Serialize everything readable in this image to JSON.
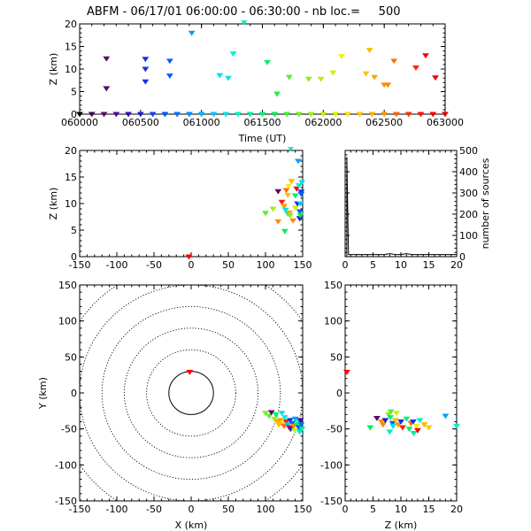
{
  "title": "ABFM - 06/17/01 06:00:00 - 06:30:00 - nb loc.=     500",
  "chart_data": [
    {
      "id": "time_height",
      "type": "scatter",
      "xlabel": "Time (UT)",
      "ylabel": "Z (km)",
      "xlim": [
        60000,
        63000
      ],
      "ylim": [
        0,
        20
      ],
      "xticks": [
        "060000",
        "060500",
        "061000",
        "061500",
        "062000",
        "062500",
        "063000"
      ],
      "yticks": [
        "0",
        "5",
        "10",
        "15",
        "20"
      ],
      "points": [
        {
          "x": 60000,
          "y": 0,
          "c": "#000000"
        },
        {
          "x": 60100,
          "y": 0,
          "c": "#3a0a4a"
        },
        {
          "x": 60200,
          "y": 0,
          "c": "#5a0a6a"
        },
        {
          "x": 60220,
          "y": 12.3,
          "c": "#5a0a6a"
        },
        {
          "x": 60220,
          "y": 5.7,
          "c": "#5a0a6a"
        },
        {
          "x": 60300,
          "y": 0,
          "c": "#4a0a90"
        },
        {
          "x": 60400,
          "y": 0,
          "c": "#3010b0"
        },
        {
          "x": 60500,
          "y": 0,
          "c": "#2020d0"
        },
        {
          "x": 60540,
          "y": 12.2,
          "c": "#1f2fe0"
        },
        {
          "x": 60540,
          "y": 10.0,
          "c": "#1f2fe0"
        },
        {
          "x": 60540,
          "y": 7.2,
          "c": "#1f2fe0"
        },
        {
          "x": 60600,
          "y": 0,
          "c": "#1040ff"
        },
        {
          "x": 60700,
          "y": 0,
          "c": "#0050ff"
        },
        {
          "x": 60740,
          "y": 11.8,
          "c": "#0060ff"
        },
        {
          "x": 60740,
          "y": 8.5,
          "c": "#0060ff"
        },
        {
          "x": 60800,
          "y": 0,
          "c": "#0070ff"
        },
        {
          "x": 60900,
          "y": 0,
          "c": "#0090ff"
        },
        {
          "x": 60920,
          "y": 18.0,
          "c": "#00a0ff"
        },
        {
          "x": 61000,
          "y": 0,
          "c": "#00b0ff"
        },
        {
          "x": 61100,
          "y": 0,
          "c": "#00c8ff"
        },
        {
          "x": 61150,
          "y": 8.6,
          "c": "#00e0f0"
        },
        {
          "x": 61200,
          "y": 0,
          "c": "#00e0e8"
        },
        {
          "x": 61220,
          "y": 8.0,
          "c": "#00e8e0"
        },
        {
          "x": 61260,
          "y": 13.4,
          "c": "#00f0d0"
        },
        {
          "x": 61300,
          "y": 0,
          "c": "#00f0c8"
        },
        {
          "x": 61350,
          "y": 20.4,
          "c": "#00f0c0"
        },
        {
          "x": 61400,
          "y": 0,
          "c": "#00f0a0"
        },
        {
          "x": 61500,
          "y": 0,
          "c": "#00f080"
        },
        {
          "x": 61540,
          "y": 11.5,
          "c": "#00f070"
        },
        {
          "x": 61600,
          "y": 0,
          "c": "#00f050"
        },
        {
          "x": 61620,
          "y": 4.5,
          "c": "#20f040"
        },
        {
          "x": 61700,
          "y": 0,
          "c": "#40f030"
        },
        {
          "x": 61720,
          "y": 8.2,
          "c": "#50f030"
        },
        {
          "x": 61800,
          "y": 0,
          "c": "#70f020"
        },
        {
          "x": 61880,
          "y": 7.8,
          "c": "#80f020"
        },
        {
          "x": 61900,
          "y": 0,
          "c": "#a0f010"
        },
        {
          "x": 61980,
          "y": 7.8,
          "c": "#b0f010"
        },
        {
          "x": 62000,
          "y": 0,
          "c": "#c8f000"
        },
        {
          "x": 62080,
          "y": 9.2,
          "c": "#d0f000"
        },
        {
          "x": 62100,
          "y": 0,
          "c": "#e0f000"
        },
        {
          "x": 62150,
          "y": 12.8,
          "c": "#f0f000"
        },
        {
          "x": 62200,
          "y": 0,
          "c": "#ffe000"
        },
        {
          "x": 62300,
          "y": 0,
          "c": "#ffc800"
        },
        {
          "x": 62350,
          "y": 9.0,
          "c": "#ffc000"
        },
        {
          "x": 62380,
          "y": 14.2,
          "c": "#ffb800"
        },
        {
          "x": 62400,
          "y": 0,
          "c": "#ffb000"
        },
        {
          "x": 62420,
          "y": 8.2,
          "c": "#ffa800"
        },
        {
          "x": 62500,
          "y": 0,
          "c": "#ff9800"
        },
        {
          "x": 62500,
          "y": 6.5,
          "c": "#ff9000"
        },
        {
          "x": 62530,
          "y": 6.5,
          "c": "#ff8800"
        },
        {
          "x": 62580,
          "y": 11.8,
          "c": "#ff7000"
        },
        {
          "x": 62600,
          "y": 0,
          "c": "#ff6000"
        },
        {
          "x": 62700,
          "y": 0,
          "c": "#ff3000"
        },
        {
          "x": 62760,
          "y": 10.3,
          "c": "#ff2000"
        },
        {
          "x": 62800,
          "y": 0,
          "c": "#ff1000"
        },
        {
          "x": 62840,
          "y": 13.0,
          "c": "#ff0000"
        },
        {
          "x": 62900,
          "y": 0,
          "c": "#f00000"
        },
        {
          "x": 62920,
          "y": 8.1,
          "c": "#ee0000"
        },
        {
          "x": 63000,
          "y": 0,
          "c": "#e00000"
        }
      ]
    },
    {
      "id": "x_height",
      "type": "scatter",
      "ylabel": "Z (km)",
      "xlim": [
        -150,
        150
      ],
      "ylim": [
        0,
        20
      ],
      "xticks": [
        "-150",
        "-100",
        "-50",
        "0",
        "50",
        "100",
        "150"
      ],
      "yticks": [
        "0",
        "5",
        "10",
        "15",
        "20"
      ],
      "points": [
        {
          "x": -3,
          "y": 0,
          "c": "#ff0000"
        },
        {
          "x": 100,
          "y": 8.2,
          "c": "#50f030"
        },
        {
          "x": 110,
          "y": 9.0,
          "c": "#a0f010"
        },
        {
          "x": 117,
          "y": 12.3,
          "c": "#5a0a6a"
        },
        {
          "x": 117,
          "y": 6.6,
          "c": "#ff9000"
        },
        {
          "x": 122,
          "y": 10.3,
          "c": "#ff2000"
        },
        {
          "x": 125,
          "y": 9.5,
          "c": "#ff9800"
        },
        {
          "x": 126,
          "y": 4.8,
          "c": "#00f050"
        },
        {
          "x": 127,
          "y": 8.8,
          "c": "#00e0f0"
        },
        {
          "x": 128,
          "y": 12.5,
          "c": "#ff7000"
        },
        {
          "x": 130,
          "y": 8.1,
          "c": "#00f070"
        },
        {
          "x": 130,
          "y": 11.6,
          "c": "#ffc000"
        },
        {
          "x": 131,
          "y": 13.3,
          "c": "#f0f000"
        },
        {
          "x": 132,
          "y": 8.3,
          "c": "#ffa800"
        },
        {
          "x": 133,
          "y": 7.8,
          "c": "#80f020"
        },
        {
          "x": 134,
          "y": 20.4,
          "c": "#00f0c0"
        },
        {
          "x": 135,
          "y": 14.2,
          "c": "#ffb800"
        },
        {
          "x": 137,
          "y": 6.8,
          "c": "#ff8800"
        },
        {
          "x": 140,
          "y": 9.2,
          "c": "#d0f000"
        },
        {
          "x": 140,
          "y": 11.5,
          "c": "#00f070"
        },
        {
          "x": 142,
          "y": 12.8,
          "c": "#ff0000"
        },
        {
          "x": 143,
          "y": 10.0,
          "c": "#1f2fe0"
        },
        {
          "x": 144,
          "y": 18.0,
          "c": "#00a0ff"
        },
        {
          "x": 145,
          "y": 13.4,
          "c": "#00f0d0"
        },
        {
          "x": 146,
          "y": 7.2,
          "c": "#2020d0"
        },
        {
          "x": 146,
          "y": 8.5,
          "c": "#0060ff"
        },
        {
          "x": 147,
          "y": 10.0,
          "c": "#00c8ff"
        },
        {
          "x": 147,
          "y": 7.8,
          "c": "#00f050"
        },
        {
          "x": 148,
          "y": 12.2,
          "c": "#1f2fe0"
        },
        {
          "x": 148,
          "y": 11.8,
          "c": "#0060ff"
        },
        {
          "x": 149,
          "y": 14.0,
          "c": "#00e0e8"
        }
      ]
    },
    {
      "id": "height_histogram",
      "type": "line",
      "ylabel": "number of sources",
      "xlim": [
        0,
        20
      ],
      "ylim": [
        0,
        500
      ],
      "xticks": [
        "0",
        "5",
        "10",
        "15",
        "20"
      ],
      "yticks": [
        "0",
        "100",
        "200",
        "300",
        "400",
        "500"
      ],
      "x": [
        0,
        0.3,
        0.3,
        0.6,
        1,
        2,
        3,
        4,
        5,
        6,
        7,
        7.5,
        8,
        8.5,
        9,
        9.5,
        10,
        10.5,
        11,
        11.5,
        12,
        12.5,
        13,
        14,
        15,
        16,
        17,
        18,
        19,
        20
      ],
      "values": [
        0,
        0,
        470,
        10,
        10,
        10,
        10,
        10,
        10,
        10,
        10,
        12,
        14,
        12,
        10,
        10,
        10,
        12,
        14,
        12,
        10,
        10,
        10,
        10,
        10,
        10,
        10,
        10,
        10,
        10
      ]
    },
    {
      "id": "plan_view",
      "type": "scatter",
      "xlabel": "X (km)",
      "ylabel": "Y (km)",
      "xlim": [
        -150,
        150
      ],
      "ylim": [
        -150,
        150
      ],
      "xticks": [
        "-150",
        "-100",
        "-50",
        "0",
        "50",
        "100",
        "150"
      ],
      "yticks": [
        "-150",
        "-100",
        "-50",
        "0",
        "50",
        "100",
        "150"
      ],
      "range_rings_km": [
        30,
        60,
        90,
        120,
        150,
        180,
        210
      ],
      "points": [
        {
          "x": -2,
          "y": 29,
          "c": "#ff0000"
        },
        {
          "x": 100,
          "y": -28,
          "c": "#80f020"
        },
        {
          "x": 105,
          "y": -32,
          "c": "#50f030"
        },
        {
          "x": 108,
          "y": -27,
          "c": "#5a0a6a"
        },
        {
          "x": 112,
          "y": -36,
          "c": "#a0f010"
        },
        {
          "x": 114,
          "y": -30,
          "c": "#00f070"
        },
        {
          "x": 116,
          "y": -40,
          "c": "#ffb000"
        },
        {
          "x": 118,
          "y": -44,
          "c": "#ffc000"
        },
        {
          "x": 120,
          "y": -38,
          "c": "#ff9800"
        },
        {
          "x": 122,
          "y": -28,
          "c": "#00e0f0"
        },
        {
          "x": 124,
          "y": -42,
          "c": "#f0f000"
        },
        {
          "x": 125,
          "y": -46,
          "c": "#ff7000"
        },
        {
          "x": 126,
          "y": -34,
          "c": "#00f0d0"
        },
        {
          "x": 128,
          "y": -40,
          "c": "#ff2000"
        },
        {
          "x": 130,
          "y": -44,
          "c": "#00c8ff"
        },
        {
          "x": 132,
          "y": -48,
          "c": "#ff0000"
        },
        {
          "x": 133,
          "y": -38,
          "c": "#1f2fe0"
        },
        {
          "x": 134,
          "y": -50,
          "c": "#2020d0"
        },
        {
          "x": 136,
          "y": -42,
          "c": "#0060ff"
        },
        {
          "x": 138,
          "y": -46,
          "c": "#ff8800"
        },
        {
          "x": 139,
          "y": -52,
          "c": "#d0f000"
        },
        {
          "x": 140,
          "y": -36,
          "c": "#00a0ff"
        },
        {
          "x": 142,
          "y": -44,
          "c": "#00f050"
        },
        {
          "x": 144,
          "y": -40,
          "c": "#00f0c0"
        },
        {
          "x": 145,
          "y": -48,
          "c": "#0050ff"
        },
        {
          "x": 146,
          "y": -54,
          "c": "#00e0e8"
        },
        {
          "x": 147,
          "y": -38,
          "c": "#4a0a90"
        },
        {
          "x": 148,
          "y": -44,
          "c": "#0070ff"
        },
        {
          "x": 149,
          "y": -50,
          "c": "#00f080"
        }
      ]
    },
    {
      "id": "height_y",
      "type": "scatter",
      "xlabel": "Z (km)",
      "xlim": [
        0,
        20
      ],
      "ylim": [
        -150,
        150
      ],
      "xticks": [
        "0",
        "5",
        "10",
        "15",
        "20"
      ],
      "yticks": [
        "-150",
        "-100",
        "-50",
        "0",
        "50",
        "100",
        "150"
      ],
      "points": [
        {
          "x": 0.3,
          "y": 29,
          "c": "#ff0000"
        },
        {
          "x": 4.5,
          "y": -48,
          "c": "#00f050"
        },
        {
          "x": 5.7,
          "y": -35,
          "c": "#5a0a6a"
        },
        {
          "x": 6.5,
          "y": -40,
          "c": "#ff9000"
        },
        {
          "x": 6.8,
          "y": -44,
          "c": "#ff8800"
        },
        {
          "x": 7.2,
          "y": -38,
          "c": "#2020d0"
        },
        {
          "x": 7.8,
          "y": -30,
          "c": "#80f020"
        },
        {
          "x": 8.0,
          "y": -54,
          "c": "#00e8e0"
        },
        {
          "x": 8.1,
          "y": -34,
          "c": "#00f070"
        },
        {
          "x": 8.2,
          "y": -26,
          "c": "#50f030"
        },
        {
          "x": 8.5,
          "y": -42,
          "c": "#0060ff"
        },
        {
          "x": 8.6,
          "y": -46,
          "c": "#00e0f0"
        },
        {
          "x": 9.0,
          "y": -38,
          "c": "#ffc000"
        },
        {
          "x": 9.2,
          "y": -28,
          "c": "#d0f000"
        },
        {
          "x": 9.5,
          "y": -44,
          "c": "#ff9800"
        },
        {
          "x": 10.0,
          "y": -40,
          "c": "#1f2fe0"
        },
        {
          "x": 10.3,
          "y": -48,
          "c": "#ff2000"
        },
        {
          "x": 11.0,
          "y": -36,
          "c": "#00f080"
        },
        {
          "x": 11.5,
          "y": -50,
          "c": "#00f070"
        },
        {
          "x": 11.8,
          "y": -42,
          "c": "#ff7000"
        },
        {
          "x": 12.2,
          "y": -40,
          "c": "#1f2fe0"
        },
        {
          "x": 12.3,
          "y": -56,
          "c": "#00f0a0"
        },
        {
          "x": 12.8,
          "y": -46,
          "c": "#f0f000"
        },
        {
          "x": 13.0,
          "y": -52,
          "c": "#ff0000"
        },
        {
          "x": 13.4,
          "y": -38,
          "c": "#00f0d0"
        },
        {
          "x": 14.2,
          "y": -44,
          "c": "#ffb800"
        },
        {
          "x": 15.0,
          "y": -48,
          "c": "#ffc800"
        },
        {
          "x": 18.0,
          "y": -32,
          "c": "#00a0ff"
        },
        {
          "x": 20.0,
          "y": -46,
          "c": "#00f0c0"
        }
      ]
    }
  ]
}
